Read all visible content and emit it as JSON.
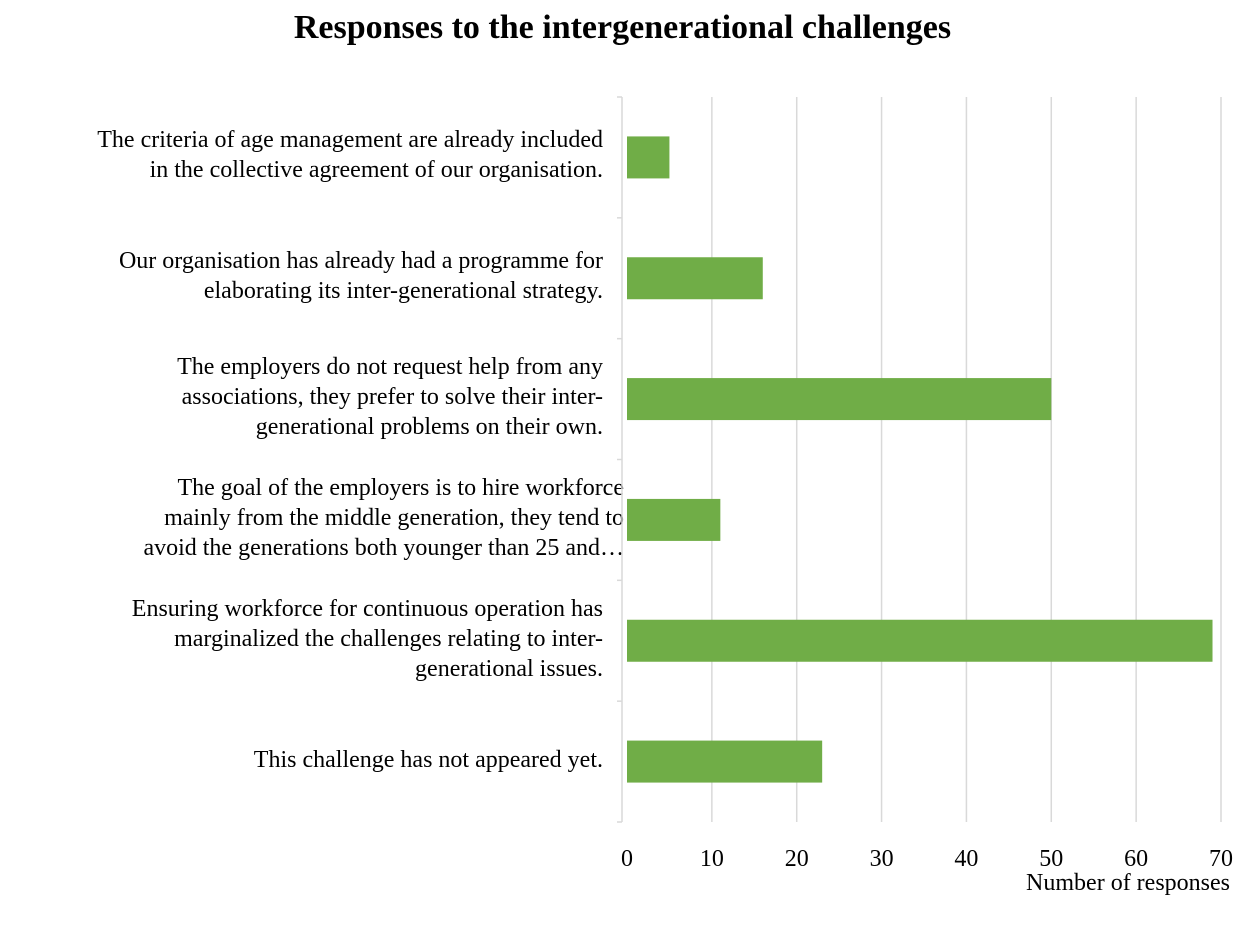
{
  "chart_data": {
    "type": "bar",
    "orientation": "horizontal",
    "title": "Responses to the intergenerational challenges",
    "xlabel": "Number of responses",
    "ylabel": "",
    "xlim": [
      0,
      70
    ],
    "x_ticks": [
      "0",
      "10",
      "20",
      "30",
      "40",
      "50",
      "60",
      "70"
    ],
    "grid": "vertical",
    "bar_color": "#70ad47",
    "categories": [
      "The criteria of age management are already included\nin the collective agreement of our organisation.",
      "Our organisation has already had a programme for\nelaborating its inter-generational strategy.",
      "The employers do not request help from any\nassociations, they prefer to solve their inter-\ngenerational problems on their own.",
      "The goal of the employers is to hire workforce\nmainly from the middle generation, they tend to\navoid the generations both younger than 25 and…",
      "Ensuring workforce for continuous operation has\nmarginalized the challenges relating to inter-\ngenerational issues.",
      "This challenge has not appeared yet."
    ],
    "values": [
      5,
      16,
      50,
      11,
      69,
      23
    ]
  }
}
